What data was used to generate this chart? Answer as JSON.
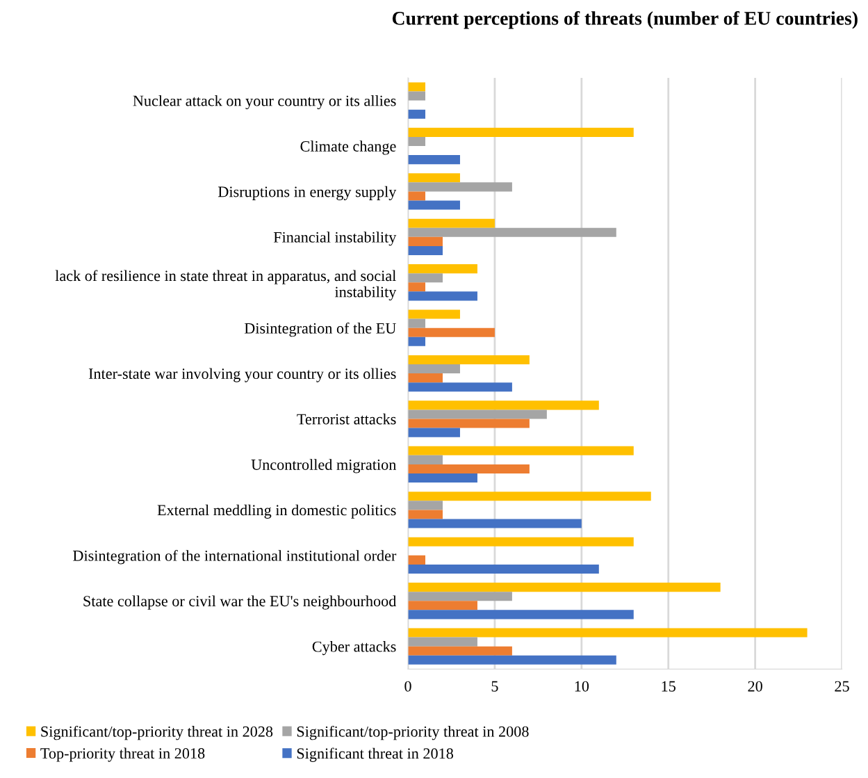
{
  "chart_data": {
    "type": "bar",
    "orientation": "horizontal",
    "title": "Current perceptions of threats (number of EU countries)",
    "categories": [
      "Nuclear attack on your country or its allies",
      "Climate change",
      "Disruptions in energy supply",
      "Financial instability",
      "lack of resilience in state threat in apparatus, and social\ninstability",
      "Disintegration of the EU",
      "Inter-state war involving your country or its ollies",
      "Terrorist attacks",
      "Uncontrolled migration",
      "External meddling in domestic politics",
      "Disintegration of the international institutional order",
      "State collapse or civil war the EU's neighbourhood",
      "Cyber attacks"
    ],
    "series": [
      {
        "name": "Significant/top-priority threat in 2028",
        "color": "#ffc000",
        "values": [
          1,
          13,
          3,
          5,
          4,
          3,
          7,
          11,
          13,
          14,
          13,
          18,
          23
        ]
      },
      {
        "name": "Significant/top-priority threat in 2008",
        "color": "#a5a5a5",
        "values": [
          1,
          1,
          6,
          12,
          2,
          1,
          3,
          8,
          2,
          2,
          0,
          6,
          4
        ]
      },
      {
        "name": "Top-priority threat in 2018",
        "color": "#ed7d31",
        "values": [
          0,
          0,
          1,
          2,
          1,
          5,
          2,
          7,
          7,
          2,
          1,
          4,
          6
        ]
      },
      {
        "name": "Significant threat in 2018",
        "color": "#4472c4",
        "values": [
          1,
          3,
          3,
          2,
          4,
          1,
          6,
          3,
          4,
          10,
          11,
          13,
          12
        ]
      }
    ],
    "xlim": [
      0,
      25
    ],
    "xticks": [
      0,
      5,
      10,
      15,
      20,
      25
    ],
    "grid": "x",
    "legend": "bottom"
  }
}
